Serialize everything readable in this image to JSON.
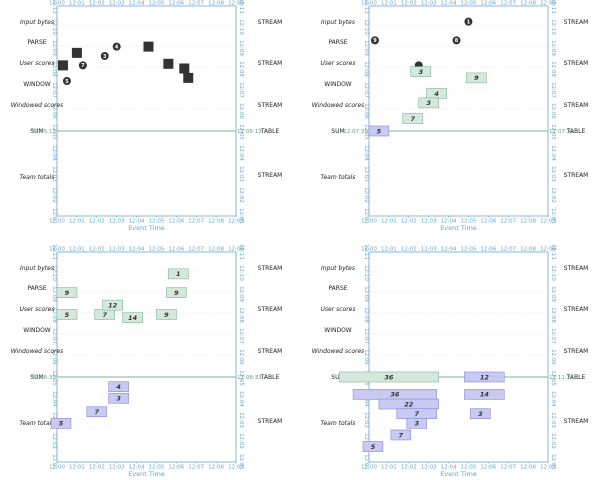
{
  "axis": {
    "x_ticks": [
      "12:00",
      "12:01",
      "12:02",
      "12:03",
      "12:04",
      "12:05",
      "12:06",
      "12:07",
      "12:08",
      "12:09"
    ],
    "y_ticks": [
      "12:01",
      "12:02",
      "12:03",
      "12:04",
      "12:05",
      "12:06",
      "12:07",
      "12:08",
      "12:09",
      "12:10",
      "12:11"
    ],
    "title": "Event Time"
  },
  "rows": {
    "input_bytes": "Input bytes",
    "parse": "PARSE",
    "user_scores": "User scores",
    "window": "WINDOW",
    "windowed_scores": "Windowed scores",
    "sum": "SUM",
    "team_totals": "Team totals"
  },
  "labels": {
    "stream": "STREAM",
    "table": "TABLE"
  },
  "panels": [
    {
      "id": "top-left",
      "watermark_time": "12:05:13",
      "raw_events": [
        {
          "t": 12.3,
          "y": 12.1
        },
        {
          "t": 13.0,
          "y": 12.5
        },
        {
          "t": 16.6,
          "y": 12.7
        },
        {
          "t": 17.6,
          "y": 12.15
        },
        {
          "t": 18.4,
          "y": 12.0
        },
        {
          "t": 18.6,
          "y": 11.7
        }
      ],
      "user_score_dots": [
        {
          "t": 12.5,
          "y": 11.6,
          "v": "5"
        },
        {
          "t": 13.3,
          "y": 12.1,
          "v": "7"
        },
        {
          "t": 14.4,
          "y": 12.4,
          "v": "3"
        },
        {
          "t": 15.0,
          "y": 12.7,
          "v": "4"
        }
      ],
      "window_boxes": [],
      "sum_boxes": [],
      "total_boxes": []
    },
    {
      "id": "top-right",
      "watermark_time": "12:07:39",
      "raw_events": [],
      "user_score_dots": [
        {
          "t": 12.3,
          "y": 12.9,
          "v": "9"
        },
        {
          "t": 16.4,
          "y": 12.9,
          "v": "8"
        },
        {
          "t": 17.0,
          "y": 13.5,
          "v": "1"
        },
        {
          "t": 14.5,
          "y": 12.1,
          "v": ""
        }
      ],
      "window_boxes": [
        {
          "t": 14.6,
          "y": 11.9,
          "v": "3"
        },
        {
          "t": 15.4,
          "y": 11.2,
          "v": "4"
        },
        {
          "t": 15.0,
          "y": 10.9,
          "v": "3"
        },
        {
          "t": 14.2,
          "y": 10.4,
          "v": "7"
        },
        {
          "t": 17.4,
          "y": 11.7,
          "v": "9"
        }
      ],
      "sum_boxes": [
        {
          "t": 12.5,
          "w": 1.0,
          "y": 10.0,
          "v": "5",
          "dim": false
        }
      ],
      "total_boxes": []
    },
    {
      "id": "bottom-left",
      "watermark_time": "12:08:33",
      "raw_events": [],
      "user_score_dots": [],
      "window_boxes": [
        {
          "t": 12.5,
          "y": 12.7,
          "v": "9"
        },
        {
          "t": 12.5,
          "y": 12.0,
          "v": "5"
        },
        {
          "t": 14.4,
          "y": 12.0,
          "v": "7"
        },
        {
          "t": 14.8,
          "y": 12.3,
          "v": "12"
        },
        {
          "t": 15.8,
          "y": 11.9,
          "v": "14"
        },
        {
          "t": 17.5,
          "y": 12.0,
          "v": "9"
        },
        {
          "t": 18.0,
          "y": 12.7,
          "v": "9"
        },
        {
          "t": 18.1,
          "y": 13.3,
          "v": "1"
        }
      ],
      "sum_boxes": [],
      "total_boxes": [
        {
          "t": 12.2,
          "y": 11.0,
          "v": "5"
        },
        {
          "t": 14.0,
          "y": 11.3,
          "v": "7"
        },
        {
          "t": 15.1,
          "y": 11.65,
          "v": "3"
        },
        {
          "t": 15.1,
          "y": 11.95,
          "v": "4"
        }
      ]
    },
    {
      "id": "bottom-right",
      "watermark_time": "12:11:26",
      "raw_events": [],
      "user_score_dots": [],
      "window_boxes": [],
      "sum_boxes": [
        {
          "t": 13.0,
          "w": 5.0,
          "y": 12.0,
          "v": "36",
          "dim": true
        },
        {
          "t": 17.8,
          "w": 2.0,
          "y": 12.0,
          "v": "12",
          "dim": false
        }
      ],
      "total_boxes": [
        {
          "t": 13.3,
          "w": 4.2,
          "y": 11.75,
          "v": "36",
          "long": true
        },
        {
          "t": 14.0,
          "w": 3.0,
          "y": 11.5,
          "v": "22",
          "long": true
        },
        {
          "t": 14.4,
          "w": 2.0,
          "y": 11.25,
          "v": "7",
          "long": true
        },
        {
          "t": 14.4,
          "w": 1.0,
          "y": 11.0,
          "v": "3",
          "long": false
        },
        {
          "t": 13.6,
          "w": 1.0,
          "y": 10.7,
          "v": "7",
          "long": false
        },
        {
          "t": 12.2,
          "w": 1.0,
          "y": 10.4,
          "v": "5",
          "long": false
        },
        {
          "t": 17.8,
          "w": 2.0,
          "y": 11.75,
          "v": "14",
          "long": true
        },
        {
          "t": 17.6,
          "w": 1.0,
          "y": 11.25,
          "v": "3",
          "long": false
        }
      ]
    }
  ]
}
